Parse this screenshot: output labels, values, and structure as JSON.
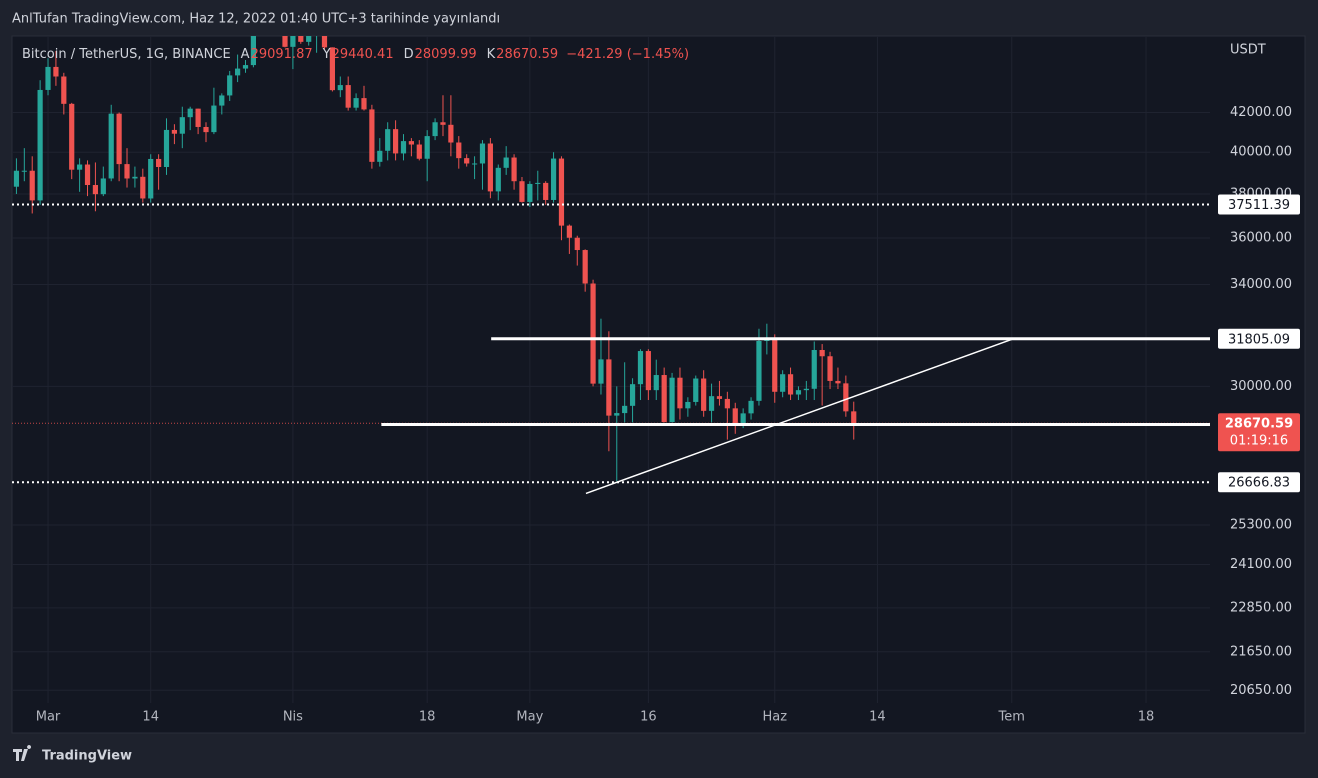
{
  "published": "AnlTufan TradingView.com, Haz 12, 2022 01:40 UTC+3 tarihinde yayınlandı",
  "brand": "TradingView",
  "chart_data": {
    "type": "candlestick",
    "symbol": "Bitcoin / TetherUS, 1G, BINANCE",
    "ohlc_labels": [
      "A",
      "Y",
      "D",
      "K"
    ],
    "change_label": "−421.29 (−1.45%)",
    "currency": "USDT",
    "countdown": "01:19:16",
    "up_color": "#26a69a",
    "down_color": "#ef5350",
    "log": true,
    "grid": true,
    "xlim": [
      -4.56,
      147.1
    ],
    "xticks": [
      {
        "value": 0,
        "label": "Mar"
      },
      {
        "value": 13,
        "label": "14"
      },
      {
        "value": 31,
        "label": "Nis"
      },
      {
        "value": 48,
        "label": "18"
      },
      {
        "value": 61,
        "label": "May"
      },
      {
        "value": 76,
        "label": "16"
      },
      {
        "value": 92,
        "label": "Haz"
      },
      {
        "value": 105,
        "label": "14"
      },
      {
        "value": 122,
        "label": "Tem"
      },
      {
        "value": 139,
        "label": "18"
      }
    ],
    "ylim": [
      20330,
      46140
    ],
    "yticks": [
      {
        "value": 42000,
        "label": "42000.00"
      },
      {
        "value": 40000,
        "label": "40000.00"
      },
      {
        "value": 38000,
        "label": "38000.00"
      },
      {
        "value": 36000,
        "label": "36000.00"
      },
      {
        "value": 34000,
        "label": "34000.00"
      },
      {
        "value": 30000,
        "label": "30000.00"
      },
      {
        "value": 25300,
        "label": "25300.00"
      },
      {
        "value": 24100,
        "label": "24100.00"
      },
      {
        "value": 22850,
        "label": "22850.00"
      },
      {
        "value": 21650,
        "label": "21650.00"
      },
      {
        "value": 20650,
        "label": "20650.00"
      }
    ],
    "x": [
      -4,
      -3,
      -2,
      -1,
      0,
      1,
      2,
      3,
      4,
      5,
      6,
      7,
      8,
      9,
      10,
      11,
      12,
      13,
      14,
      15,
      16,
      17,
      18,
      19,
      20,
      21,
      22,
      23,
      24,
      25,
      26,
      27,
      28,
      29,
      30,
      31,
      32,
      33,
      34,
      35,
      36,
      37,
      38,
      39,
      40,
      41,
      42,
      43,
      44,
      45,
      46,
      47,
      48,
      49,
      50,
      51,
      52,
      53,
      54,
      55,
      56,
      57,
      58,
      59,
      60,
      61,
      62,
      63,
      64,
      65,
      66,
      67,
      68,
      69,
      70,
      71,
      72,
      73,
      74,
      75,
      76,
      77,
      78,
      79,
      80,
      81,
      82,
      83,
      84,
      85,
      86,
      87,
      88,
      89,
      90,
      91,
      92,
      93,
      94,
      95,
      96,
      97,
      98,
      99,
      100,
      101,
      102
    ],
    "open": [
      38340,
      39100,
      39100,
      37700,
      43180,
      44420,
      43900,
      42450,
      39150,
      39400,
      38420,
      37990,
      38730,
      41940,
      39420,
      38730,
      38810,
      37790,
      39670,
      39280,
      41110,
      40920,
      41760,
      42200,
      41260,
      41000,
      42360,
      42890,
      43960,
      44330,
      44520,
      46820,
      47130,
      47430,
      47060,
      45530,
      46280,
      45810,
      46400,
      46580,
      45500,
      43170,
      43440,
      42250,
      42750,
      42160,
      39530,
      40070,
      41150,
      39940,
      40550,
      40380,
      39680,
      40800,
      41500,
      41370,
      40480,
      39710,
      39450,
      39450,
      40430,
      38120,
      39240,
      39740,
      38600,
      37630,
      38470,
      38520,
      37720,
      39690,
      36550,
      36010,
      35470,
      34040,
      30100,
      31010,
      28940,
      29030,
      29290,
      30080,
      31330,
      29860,
      30420,
      28710,
      30320,
      29200,
      29430,
      30290,
      29110,
      29640,
      29540,
      29200,
      28620,
      29020,
      29470,
      31720,
      31790,
      29800,
      30450,
      29700,
      29860,
      29910,
      31370,
      31130,
      30200,
      30110,
      29091.87
    ],
    "high": [
      39700,
      40200,
      39800,
      43700,
      44900,
      45300,
      44100,
      42500,
      39700,
      39600,
      39500,
      39300,
      42400,
      42000,
      40200,
      39300,
      39200,
      39900,
      39900,
      41700,
      41400,
      42300,
      42300,
      42200,
      41500,
      43300,
      43000,
      44200,
      45100,
      44800,
      46900,
      48100,
      48200,
      47600,
      47400,
      46700,
      47200,
      47000,
      47500,
      47100,
      45500,
      43900,
      43900,
      43000,
      43400,
      42400,
      40700,
      41500,
      41600,
      40900,
      40700,
      40600,
      41100,
      41700,
      42900,
      42900,
      40800,
      39900,
      39800,
      40600,
      40700,
      39400,
      40300,
      39900,
      38800,
      38600,
      39100,
      38600,
      40000,
      39800,
      36600,
      36100,
      35500,
      34200,
      32600,
      32100,
      30000,
      30900,
      30300,
      31400,
      31400,
      31000,
      30700,
      30500,
      30700,
      29600,
      30400,
      30600,
      30100,
      30200,
      29800,
      29400,
      29200,
      29600,
      32200,
      32400,
      31980,
      30600,
      30700,
      30000,
      30200,
      31700,
      31600,
      31300,
      30700,
      30400,
      29440.41
    ],
    "low": [
      38000,
      38600,
      37100,
      37500,
      42900,
      43400,
      41900,
      38700,
      38100,
      37900,
      37200,
      37900,
      38600,
      38600,
      38300,
      38300,
      37600,
      37600,
      38200,
      38900,
      40400,
      40200,
      41100,
      40900,
      40500,
      40900,
      41900,
      42600,
      43600,
      44100,
      44400,
      46700,
      46600,
      46600,
      45500,
      44300,
      45700,
      45600,
      45200,
      45400,
      43100,
      42800,
      42100,
      42100,
      42100,
      39200,
      39300,
      39600,
      39600,
      39600,
      39800,
      39600,
      38600,
      40600,
      40800,
      39800,
      39200,
      39300,
      38700,
      38200,
      37800,
      37700,
      38900,
      38200,
      37600,
      37400,
      37700,
      37500,
      37600,
      35900,
      35300,
      34800,
      33700,
      30000,
      29700,
      27700,
      26700,
      28700,
      28700,
      29500,
      29500,
      29500,
      28700,
      28700,
      28800,
      28900,
      29300,
      28900,
      28700,
      29300,
      28100,
      28300,
      28500,
      28800,
      29300,
      31200,
      29400,
      29600,
      29500,
      29500,
      29500,
      29500,
      29300,
      29900,
      29900,
      28900,
      28099.99
    ],
    "close": [
      39100,
      39100,
      37700,
      43180,
      44420,
      43900,
      42450,
      39150,
      39400,
      38420,
      37990,
      38730,
      41940,
      39420,
      38730,
      38810,
      37790,
      39670,
      39280,
      41110,
      40920,
      41760,
      42200,
      41260,
      41000,
      42360,
      42890,
      43960,
      44330,
      44520,
      46820,
      47130,
      47430,
      47060,
      45530,
      46280,
      45810,
      46400,
      46580,
      45500,
      43170,
      43440,
      42250,
      42750,
      42160,
      39530,
      40070,
      41150,
      39940,
      40550,
      40380,
      39680,
      40800,
      41500,
      41370,
      40480,
      39710,
      39450,
      39450,
      40430,
      38120,
      39240,
      39740,
      38600,
      37630,
      38470,
      38520,
      37720,
      39690,
      36550,
      36010,
      35470,
      34040,
      30100,
      31010,
      28940,
      29030,
      29290,
      30080,
      31330,
      29860,
      30420,
      28710,
      30320,
      29200,
      29430,
      30290,
      29110,
      29640,
      29540,
      29200,
      28620,
      29020,
      29470,
      31720,
      31790,
      29800,
      30450,
      29700,
      29860,
      29910,
      31370,
      31130,
      30200,
      30110,
      29091.87,
      28670.59
    ],
    "hlines": [
      {
        "value": 37511.39,
        "style": "dotted",
        "x_start": -4.56
      },
      {
        "value": 31805.09,
        "style": "solid",
        "x_start": 56.1
      },
      {
        "value": 28627.61,
        "style": "solid",
        "x_start": 42.2
      },
      {
        "value": 26666.83,
        "style": "dotted",
        "x_start": -4.56
      }
    ],
    "trendline": {
      "x": [
        68.1,
        122.2
      ],
      "y": [
        26300,
        31805.09
      ]
    }
  }
}
